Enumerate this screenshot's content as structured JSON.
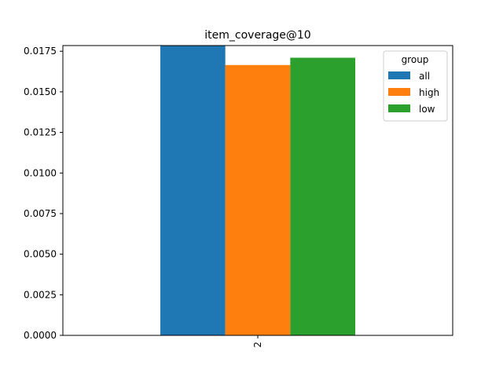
{
  "chart_data": {
    "type": "bar",
    "title": "item_coverage@10",
    "xlabel": "",
    "ylabel": "",
    "categories": [
      "2"
    ],
    "series": [
      {
        "name": "all",
        "color": "#1f77b4",
        "values": [
          0.01785
        ]
      },
      {
        "name": "high",
        "color": "#ff7f0e",
        "values": [
          0.01665
        ]
      },
      {
        "name": "low",
        "color": "#2ca02c",
        "values": [
          0.0171
        ]
      }
    ],
    "ylim": [
      0,
      0.01785
    ],
    "yticks": [
      "0.0000",
      "0.0025",
      "0.0050",
      "0.0075",
      "0.0100",
      "0.0125",
      "0.0150",
      "0.0175"
    ],
    "ytick_values": [
      0,
      0.0025,
      0.005,
      0.0075,
      0.01,
      0.0125,
      0.015,
      0.0175
    ],
    "grid": false,
    "legend": {
      "title": "group",
      "placement": "top-right"
    }
  }
}
